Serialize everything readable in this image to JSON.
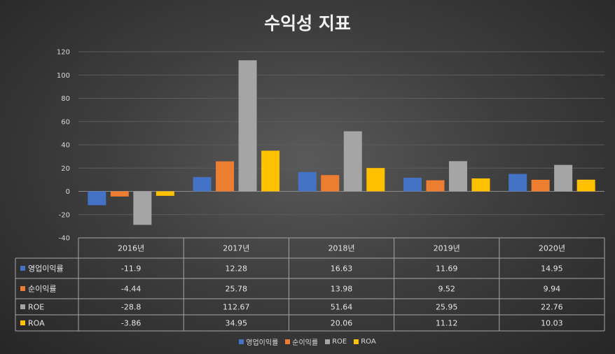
{
  "chart_data": {
    "type": "bar",
    "title": "수익성 지표",
    "categories": [
      "2016년",
      "2017년",
      "2018년",
      "2019년",
      "2020년"
    ],
    "series": [
      {
        "name": "영업이익률",
        "color": "#4472c4",
        "values": [
          -11.9,
          12.28,
          16.63,
          11.69,
          14.95
        ],
        "labels": [
          "-11.9",
          "12.28",
          "16.63",
          "11.69",
          "14.95"
        ]
      },
      {
        "name": "순이익률",
        "color": "#ed7d31",
        "values": [
          -4.44,
          25.78,
          13.98,
          9.52,
          9.94
        ],
        "labels": [
          "-4.44",
          "25.78",
          "13.98",
          "9.52",
          "9.94"
        ]
      },
      {
        "name": "ROE",
        "color": "#a5a5a5",
        "values": [
          -28.8,
          112.67,
          51.64,
          25.95,
          22.76
        ],
        "labels": [
          "-28.8",
          "112.67",
          "51.64",
          "25.95",
          "22.76"
        ]
      },
      {
        "name": "ROA",
        "color": "#ffc000",
        "values": [
          -3.86,
          34.95,
          20.06,
          11.12,
          10.03
        ],
        "labels": [
          "-3.86",
          "34.95",
          "20.06",
          "11.12",
          "10.03"
        ]
      }
    ],
    "y_ticks": [
      "120",
      "100",
      "80",
      "60",
      "40",
      "20",
      "0",
      "-20",
      "-40"
    ],
    "ylim": [
      -40,
      120
    ],
    "grid": true,
    "legend": "bottom",
    "data_table": true
  }
}
